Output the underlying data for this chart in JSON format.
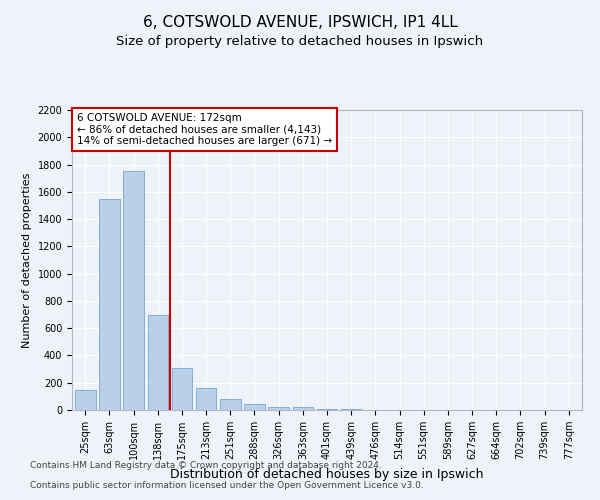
{
  "title": "6, COTSWOLD AVENUE, IPSWICH, IP1 4LL",
  "subtitle": "Size of property relative to detached houses in Ipswich",
  "xlabel": "Distribution of detached houses by size in Ipswich",
  "ylabel": "Number of detached properties",
  "categories": [
    "25sqm",
    "63sqm",
    "100sqm",
    "138sqm",
    "175sqm",
    "213sqm",
    "251sqm",
    "288sqm",
    "326sqm",
    "363sqm",
    "401sqm",
    "439sqm",
    "476sqm",
    "514sqm",
    "551sqm",
    "589sqm",
    "627sqm",
    "664sqm",
    "702sqm",
    "739sqm",
    "777sqm"
  ],
  "values": [
    150,
    1545,
    1750,
    695,
    310,
    158,
    80,
    44,
    25,
    19,
    10,
    5,
    3,
    2,
    1,
    1,
    0,
    0,
    0,
    0,
    0
  ],
  "bar_color": "#b8d0e8",
  "bar_edgecolor": "#6699cc",
  "vline_color": "#cc0000",
  "annotation_line1": "6 COTSWOLD AVENUE: 172sqm",
  "annotation_line2": "← 86% of detached houses are smaller (4,143)",
  "annotation_line3": "14% of semi-detached houses are larger (671) →",
  "annotation_box_facecolor": "#ffffff",
  "annotation_box_edgecolor": "#cc0000",
  "ylim_max": 2200,
  "yticks": [
    0,
    200,
    400,
    600,
    800,
    1000,
    1200,
    1400,
    1600,
    1800,
    2000,
    2200
  ],
  "footer1": "Contains HM Land Registry data © Crown copyright and database right 2024.",
  "footer2": "Contains public sector information licensed under the Open Government Licence v3.0.",
  "bg_color": "#eef2f9",
  "grid_color": "#ffffff",
  "title_fontsize": 11,
  "subtitle_fontsize": 9.5,
  "ylabel_fontsize": 8,
  "xlabel_fontsize": 9,
  "tick_fontsize": 7,
  "annot_fontsize": 7.5,
  "footer_fontsize": 6.5
}
